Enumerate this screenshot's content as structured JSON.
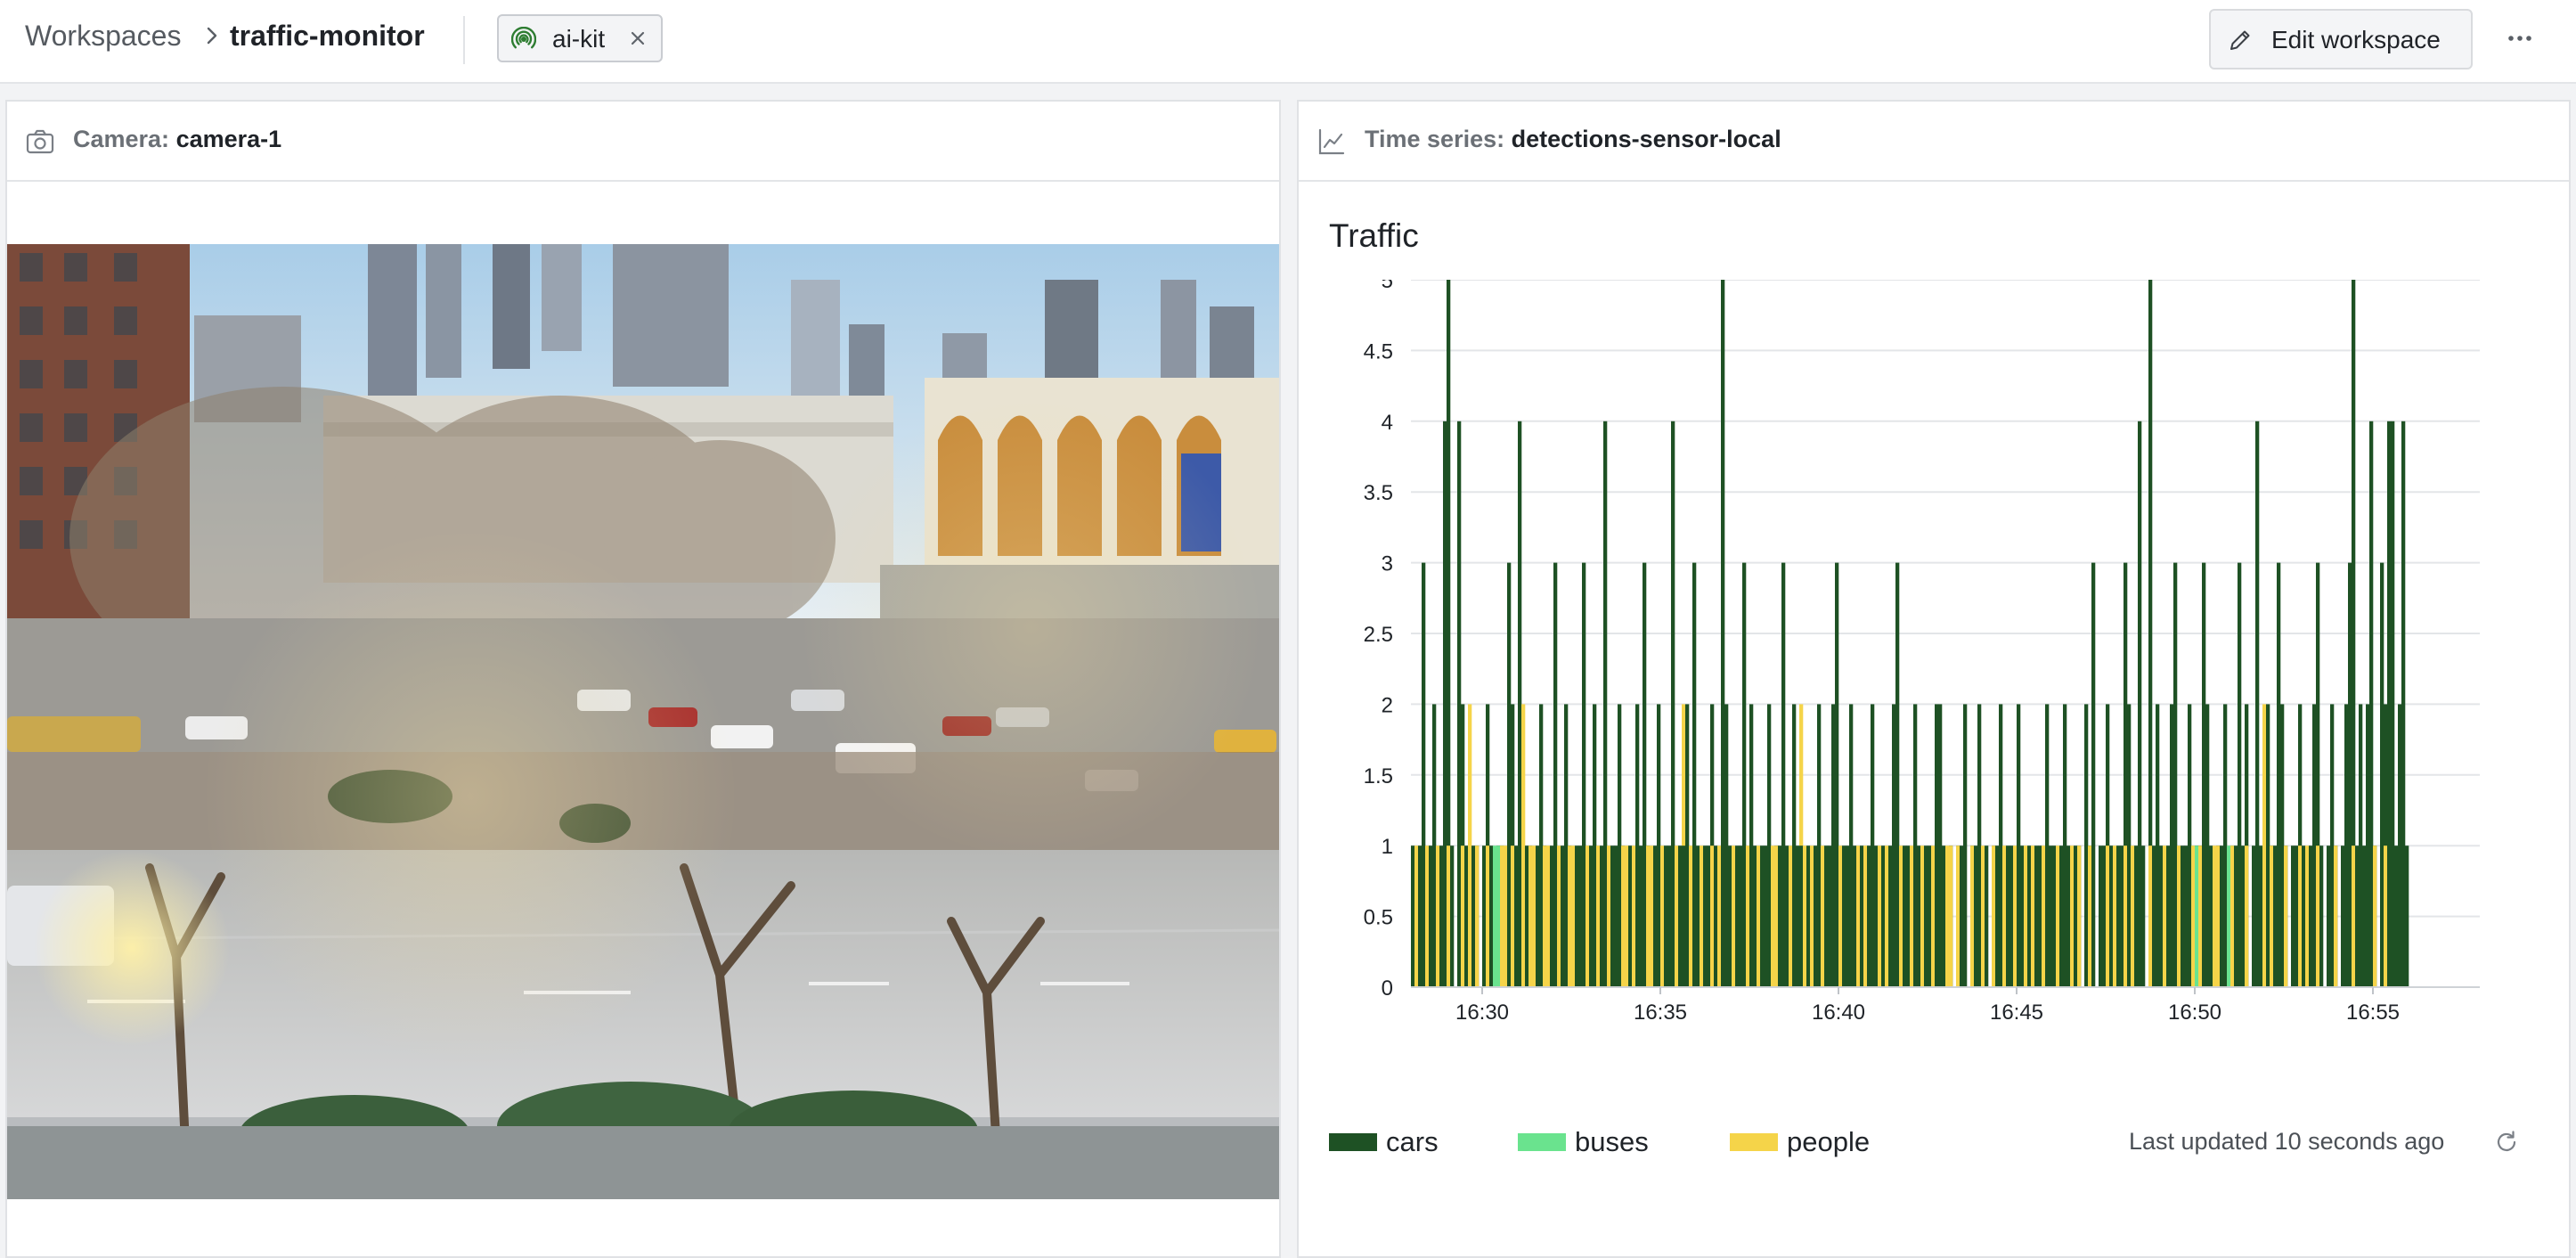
{
  "breadcrumb": {
    "root": "Workspaces",
    "current": "traffic-monitor"
  },
  "tag": {
    "label": "ai-kit",
    "icon": "broadcast-icon",
    "close_icon": "close-icon"
  },
  "header_actions": {
    "edit_label": "Edit workspace",
    "edit_icon": "pencil-icon",
    "more_icon": "more-horizontal-icon"
  },
  "camera_panel": {
    "kind": "Camera:",
    "name": "camera-1",
    "icon": "camera-icon"
  },
  "series_panel": {
    "kind": "Time series:",
    "name": "detections-sensor-local",
    "icon": "line-chart-icon"
  },
  "chart_footer": {
    "last_updated": "Last updated 10 seconds ago",
    "refresh_icon": "refresh-icon"
  },
  "colors": {
    "cars": "#1e5124",
    "buses": "#6ae38e",
    "people": "#f5d449"
  },
  "chart_data": {
    "type": "bar",
    "title": "Traffic",
    "xlabel": "",
    "ylabel": "",
    "ylim": [
      0,
      5
    ],
    "yticks": [
      "0",
      "0.5",
      "1",
      "1.5",
      "2",
      "2.5",
      "3",
      "3.5",
      "4",
      "4.5",
      "5"
    ],
    "xticks": [
      "16:30",
      "16:35",
      "16:40",
      "16:45",
      "16:50",
      "16:55"
    ],
    "x_start": "16:28",
    "x_end": "16:58",
    "x_step_seconds": 6,
    "legend": [
      "cars",
      "buses",
      "people"
    ],
    "legend_position": "bottom",
    "grid": true,
    "series": [
      {
        "name": "cars",
        "values": [
          1,
          0,
          1,
          3,
          0,
          1,
          2,
          0,
          1,
          4,
          5,
          1,
          0,
          4,
          2,
          1,
          0,
          1,
          1,
          0,
          1,
          2,
          1,
          0,
          1,
          1,
          0,
          3,
          2,
          1,
          4,
          0,
          1,
          1,
          0,
          1,
          2,
          1,
          0,
          1,
          3,
          0,
          1,
          2,
          1,
          0,
          1,
          1,
          3,
          0,
          1,
          2,
          0,
          1,
          4,
          0,
          1,
          1,
          2,
          1,
          0,
          1,
          0,
          2,
          1,
          3,
          1,
          0,
          1,
          2,
          0,
          1,
          1,
          4,
          0,
          1,
          1,
          2,
          0,
          3,
          1,
          0,
          1,
          1,
          2,
          1,
          0,
          5,
          2,
          1,
          0,
          1,
          1,
          3,
          0,
          2,
          1,
          0,
          1,
          1,
          2,
          0,
          1,
          1,
          3,
          1,
          0,
          2,
          1,
          1,
          0,
          1,
          0,
          1,
          2,
          0,
          1,
          1,
          2,
          3,
          0,
          1,
          1,
          2,
          1,
          0,
          1,
          0,
          1,
          2,
          1,
          0,
          1,
          0,
          1,
          2,
          3,
          0,
          1,
          1,
          0,
          2,
          1,
          0,
          1,
          1,
          0,
          2,
          2,
          1,
          0,
          1,
          0,
          1,
          1,
          2,
          0,
          1,
          1,
          2,
          0,
          1,
          0,
          1,
          1,
          2,
          0,
          1,
          1,
          0,
          2,
          1,
          0,
          1,
          0,
          1,
          1,
          0,
          2,
          1,
          1,
          0,
          1,
          2,
          1,
          0,
          1,
          1,
          0,
          2,
          1,
          3,
          0,
          1,
          1,
          2,
          1,
          0,
          1,
          1,
          3,
          2,
          0,
          1,
          4,
          1,
          0,
          5,
          1,
          2,
          1,
          0,
          1,
          2,
          3,
          0,
          1,
          1,
          2,
          0,
          1,
          1,
          3,
          2,
          1,
          0,
          1,
          1,
          2,
          0,
          1,
          1,
          3,
          1,
          2,
          0,
          1,
          4,
          1,
          0,
          2,
          1,
          1,
          3,
          2,
          1,
          0,
          1,
          1,
          2,
          1,
          0,
          1,
          2,
          3,
          1,
          0,
          1,
          2,
          1,
          0,
          1,
          2,
          3,
          5,
          1,
          2,
          1,
          2,
          4,
          1,
          0,
          3,
          2,
          4,
          4,
          1,
          2,
          4,
          1
        ],
        "color": "#1e5124"
      },
      {
        "name": "buses",
        "values": [
          0,
          0,
          0,
          0,
          0,
          0,
          0,
          0,
          0,
          0,
          0,
          0,
          0,
          0,
          0,
          0,
          0,
          0,
          0,
          0,
          0,
          0,
          0,
          1,
          1,
          1,
          0,
          0,
          0,
          0,
          0,
          0,
          0,
          0,
          0,
          0,
          0,
          0,
          0,
          0,
          0,
          0,
          0,
          0,
          0,
          0,
          0,
          0,
          0,
          0,
          0,
          0,
          0,
          0,
          0,
          0,
          0,
          0,
          0,
          0,
          0,
          0,
          0,
          0,
          0,
          0,
          0,
          0,
          0,
          0,
          0,
          0,
          0,
          0,
          0,
          0,
          0,
          0,
          0,
          0,
          0,
          0,
          0,
          0,
          0,
          0,
          0,
          0,
          0,
          0,
          0,
          0,
          0,
          0,
          0,
          0,
          0,
          0,
          0,
          0,
          0,
          0,
          0,
          0,
          0,
          0,
          0,
          0,
          0,
          0,
          0,
          0,
          0,
          0,
          0,
          0,
          0,
          0,
          0,
          0,
          0,
          0,
          0,
          0,
          0,
          0,
          0,
          0,
          0,
          0,
          0,
          0,
          0,
          0,
          0,
          0,
          0,
          0,
          0,
          0,
          0,
          0,
          0,
          0,
          0,
          0,
          0,
          0,
          0,
          0,
          0,
          0,
          0,
          0,
          0,
          0,
          0,
          0,
          0,
          0,
          0,
          0,
          0,
          0,
          0,
          0,
          0,
          0,
          0,
          0,
          0,
          0,
          0,
          0,
          0,
          0,
          0,
          0,
          0,
          0,
          0,
          0,
          0,
          0,
          0,
          0,
          0,
          0,
          0,
          0,
          0,
          0,
          0,
          0,
          0,
          0,
          0,
          0,
          0,
          0,
          0,
          0,
          0,
          0,
          0,
          0,
          0,
          0,
          0,
          0,
          0,
          0,
          0,
          0,
          0,
          0,
          0,
          0,
          0,
          1,
          1,
          0,
          0,
          0,
          0,
          0,
          0,
          0,
          0,
          1,
          1,
          0,
          0,
          0,
          0,
          0,
          0,
          0,
          0,
          0,
          0,
          0,
          0,
          0,
          0,
          0,
          0,
          0,
          0,
          0,
          0,
          0,
          0,
          0,
          0,
          0,
          0,
          0,
          0,
          0,
          0,
          0,
          0,
          0,
          0,
          0,
          0,
          0,
          0,
          0,
          0,
          0,
          0,
          0,
          0,
          0,
          0,
          0,
          0,
          0,
          0,
          0,
          0,
          0,
          0,
          0,
          0,
          0
        ],
        "color": "#6ae38e"
      },
      {
        "name": "people",
        "values": [
          0,
          1,
          0,
          0,
          1,
          0,
          0,
          1,
          0,
          0,
          1,
          0,
          0,
          0,
          1,
          0,
          2,
          0,
          1,
          0,
          0,
          1,
          0,
          0,
          0,
          1,
          1,
          0,
          1,
          0,
          0,
          2,
          0,
          1,
          1,
          0,
          0,
          1,
          1,
          0,
          0,
          1,
          0,
          0,
          1,
          1,
          0,
          0,
          0,
          1,
          0,
          0,
          1,
          0,
          0,
          1,
          0,
          0,
          0,
          1,
          1,
          0,
          1,
          0,
          0,
          0,
          1,
          1,
          0,
          0,
          1,
          0,
          0,
          0,
          1,
          0,
          2,
          0,
          1,
          0,
          0,
          1,
          0,
          0,
          1,
          0,
          1,
          0,
          0,
          0,
          1,
          0,
          0,
          0,
          1,
          0,
          0,
          1,
          0,
          0,
          0,
          1,
          1,
          0,
          0,
          0,
          1,
          0,
          0,
          2,
          1,
          0,
          1,
          0,
          0,
          1,
          0,
          0,
          0,
          0,
          1,
          0,
          0,
          0,
          0,
          1,
          0,
          1,
          0,
          0,
          0,
          1,
          0,
          1,
          0,
          0,
          0,
          1,
          0,
          0,
          1,
          0,
          0,
          1,
          0,
          0,
          1,
          0,
          0,
          0,
          1,
          1,
          0,
          1,
          0,
          0,
          0,
          1,
          0,
          0,
          1,
          0,
          0,
          1,
          0,
          0,
          1,
          0,
          0,
          1,
          0,
          0,
          1,
          0,
          1,
          0,
          0,
          1,
          0,
          0,
          0,
          1,
          0,
          0,
          0,
          1,
          0,
          1,
          0,
          0,
          1,
          0,
          0,
          0,
          0,
          1,
          0,
          1,
          0,
          0,
          1,
          0,
          1,
          0,
          0,
          0,
          0,
          1,
          0,
          0,
          0,
          1,
          0,
          0,
          0,
          1,
          0,
          0,
          0,
          1,
          0,
          1,
          0,
          0,
          0,
          1,
          1,
          0,
          0,
          0,
          1,
          0,
          0,
          0,
          1,
          0,
          0,
          0,
          0,
          2,
          0,
          1,
          0,
          0,
          0,
          1,
          0,
          0,
          0,
          1,
          0,
          1,
          0,
          0,
          1,
          0,
          0,
          0,
          0,
          1,
          0,
          0,
          0,
          0,
          1,
          0,
          0,
          0,
          0,
          0,
          1,
          0,
          0,
          1,
          0,
          0,
          0,
          0,
          0,
          0,
          1
        ],
        "color": "#f5d449"
      }
    ]
  }
}
